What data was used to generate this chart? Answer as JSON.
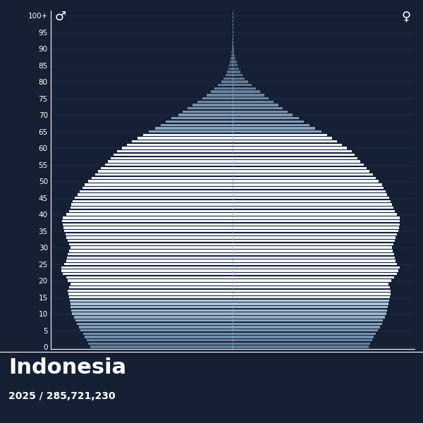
{
  "title": "Indonesia",
  "subtitle": "2025 / 285,721,230",
  "bg_color": "#152035",
  "text_color": "#ffffff",
  "male_symbol": "♂",
  "female_symbol": "♀",
  "ages": [
    0,
    1,
    2,
    3,
    4,
    5,
    6,
    7,
    8,
    9,
    10,
    11,
    12,
    13,
    14,
    15,
    16,
    17,
    18,
    19,
    20,
    21,
    22,
    23,
    24,
    25,
    26,
    27,
    28,
    29,
    30,
    31,
    32,
    33,
    34,
    35,
    36,
    37,
    38,
    39,
    40,
    41,
    42,
    43,
    44,
    45,
    46,
    47,
    48,
    49,
    50,
    51,
    52,
    53,
    54,
    55,
    56,
    57,
    58,
    59,
    60,
    61,
    62,
    63,
    64,
    65,
    66,
    67,
    68,
    69,
    70,
    71,
    72,
    73,
    74,
    75,
    76,
    77,
    78,
    79,
    80,
    81,
    82,
    83,
    84,
    85,
    86,
    87,
    88,
    89,
    90,
    91,
    92,
    93,
    94,
    95,
    96,
    97,
    98,
    99,
    100
  ],
  "male": [
    2350000,
    2380000,
    2410000,
    2440000,
    2470000,
    2510000,
    2540000,
    2570000,
    2590000,
    2620000,
    2650000,
    2660000,
    2670000,
    2680000,
    2690000,
    2700000,
    2710000,
    2720000,
    2700000,
    2680000,
    2720000,
    2750000,
    2800000,
    2820000,
    2830000,
    2780000,
    2750000,
    2730000,
    2720000,
    2700000,
    2680000,
    2700000,
    2720000,
    2740000,
    2760000,
    2780000,
    2790000,
    2800000,
    2810000,
    2800000,
    2750000,
    2700000,
    2680000,
    2660000,
    2640000,
    2600000,
    2560000,
    2520000,
    2480000,
    2440000,
    2380000,
    2320000,
    2270000,
    2220000,
    2170000,
    2110000,
    2060000,
    2010000,
    1960000,
    1910000,
    1820000,
    1740000,
    1660000,
    1570000,
    1480000,
    1380000,
    1280000,
    1190000,
    1100000,
    1010000,
    900000,
    820000,
    740000,
    660000,
    580000,
    500000,
    430000,
    360000,
    300000,
    240000,
    190000,
    150000,
    120000,
    95000,
    75000,
    60000,
    47000,
    36000,
    27000,
    20000,
    14000,
    10000,
    7000,
    5000,
    3500,
    2400,
    1600,
    1000,
    600,
    300,
    100
  ],
  "female": [
    2240000,
    2270000,
    2300000,
    2330000,
    2360000,
    2400000,
    2430000,
    2460000,
    2480000,
    2510000,
    2540000,
    2550000,
    2560000,
    2570000,
    2580000,
    2590000,
    2600000,
    2610000,
    2590000,
    2570000,
    2620000,
    2660000,
    2710000,
    2730000,
    2750000,
    2710000,
    2690000,
    2670000,
    2660000,
    2640000,
    2630000,
    2650000,
    2670000,
    2690000,
    2710000,
    2730000,
    2740000,
    2750000,
    2760000,
    2750000,
    2710000,
    2670000,
    2650000,
    2630000,
    2610000,
    2580000,
    2550000,
    2520000,
    2490000,
    2460000,
    2410000,
    2360000,
    2310000,
    2260000,
    2210000,
    2160000,
    2110000,
    2060000,
    2010000,
    1960000,
    1880000,
    1800000,
    1720000,
    1640000,
    1560000,
    1460000,
    1360000,
    1270000,
    1180000,
    1090000,
    990000,
    910000,
    830000,
    750000,
    670000,
    590000,
    520000,
    450000,
    380000,
    310000,
    250000,
    200000,
    160000,
    130000,
    105000,
    83000,
    65000,
    51000,
    39000,
    29000,
    21000,
    15000,
    11000,
    8000,
    5600,
    3900,
    2600,
    1700,
    1050,
    600,
    200
  ],
  "max_val": 3000000,
  "ytick_interval": 5,
  "grid_color": "#1e3050",
  "center_line_color": "#8ab0cc",
  "separator_color": "#ffffff"
}
